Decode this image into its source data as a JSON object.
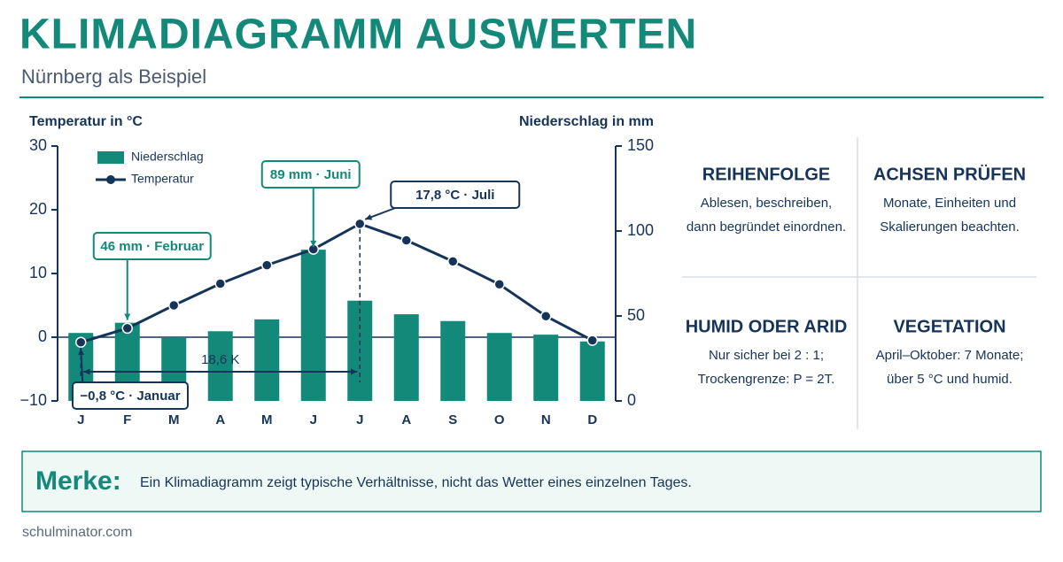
{
  "header": {
    "title": "KLIMADIAGRAMM AUSWERTEN",
    "subtitle": "Nürnberg als Beispiel"
  },
  "chart_data": {
    "type": "bar",
    "ylabel": "Temperatur in °C",
    "y2label": "Niederschlag in mm",
    "categories": [
      "J",
      "F",
      "M",
      "A",
      "M",
      "J",
      "J",
      "A",
      "S",
      "O",
      "N",
      "D"
    ],
    "series": [
      {
        "name": "Niederschlag",
        "type": "bar",
        "axis": "y2",
        "color": "#13897a",
        "values": [
          40,
          46,
          37,
          41,
          48,
          89,
          59,
          51,
          47,
          40,
          39,
          35
        ]
      },
      {
        "name": "Temperatur",
        "type": "line",
        "axis": "y",
        "color": "#16345a",
        "values": [
          -0.8,
          1.4,
          5.0,
          8.4,
          11.3,
          13.8,
          17.8,
          15.2,
          11.9,
          8.3,
          3.3,
          -0.5
        ]
      }
    ],
    "ylim": [
      -10,
      30
    ],
    "yticks": [
      {
        "value": -10,
        "label": "−10"
      },
      0,
      10,
      20,
      30
    ],
    "y2lim": [
      0,
      150
    ],
    "y2ticks": [
      0,
      50,
      100,
      150
    ],
    "legend": "upper left",
    "annotations": [
      "46 mm · Februar",
      "89 mm · Juni",
      "17,8 °C · Juli",
      "−0,8 °C · Januar"
    ],
    "span_label": "18,6 K"
  },
  "cards": [
    {
      "title": "REIHENFOLGE",
      "lines": [
        "Ablesen, beschreiben,",
        "dann begründet einordnen."
      ]
    },
    {
      "title": "ACHSEN PRÜFEN",
      "lines": [
        "Monate, Einheiten und",
        "Skalierungen beachten."
      ]
    },
    {
      "title": "HUMID ODER ARID",
      "lines": [
        "Nur sicher bei 2 : 1;",
        "Trockengrenze: P = 2T."
      ]
    },
    {
      "title": "VEGETATION",
      "lines": [
        "April–Oktober: 7 Monate;",
        "über 5 °C und humid."
      ]
    }
  ],
  "note": {
    "label": "Merke:",
    "text": "Ein Klimadiagramm zeigt typische Verhältnisse, nicht das Wetter eines einzelnen Tages."
  },
  "footer": "schulminator.com"
}
